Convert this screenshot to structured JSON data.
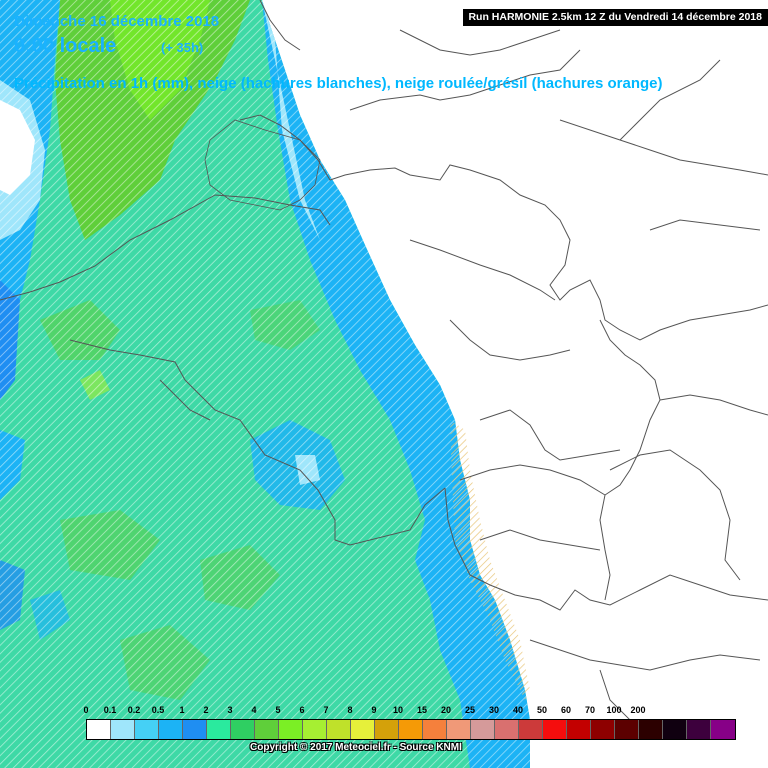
{
  "header": {
    "date_line": "Dimanche 16 décembre 2018",
    "time_main": "0:00 locale",
    "time_offset": "(+ 35h)",
    "precip_title": "Précipitation en 1h (mm), neige (hachures blanches), neige roulée/grésil (hachures orange)",
    "run_info": "Run HARMONIE 2.5km 12 Z du Vendredi 14 décembre 2018"
  },
  "legend": {
    "unit": "mm",
    "items": [
      {
        "label": "0",
        "color": "#ffffff"
      },
      {
        "label": "0.1",
        "color": "#9fe6fb"
      },
      {
        "label": "0.2",
        "color": "#45d0f5"
      },
      {
        "label": "0.5",
        "color": "#1cb3f5"
      },
      {
        "label": "1",
        "color": "#1f8ef2"
      },
      {
        "label": "2",
        "color": "#2aea9e"
      },
      {
        "label": "3",
        "color": "#2fcf62"
      },
      {
        "label": "4",
        "color": "#5fcf3a"
      },
      {
        "label": "5",
        "color": "#7bef25"
      },
      {
        "label": "6",
        "color": "#a6ef32"
      },
      {
        "label": "7",
        "color": "#bfe12a"
      },
      {
        "label": "8",
        "color": "#e6f03a"
      },
      {
        "label": "9",
        "color": "#d4a10a"
      },
      {
        "label": "10",
        "color": "#f59a06"
      },
      {
        "label": "15",
        "color": "#f5803c"
      },
      {
        "label": "20",
        "color": "#f09978"
      },
      {
        "label": "25",
        "color": "#d59a9a"
      },
      {
        "label": "30",
        "color": "#d9706f"
      },
      {
        "label": "40",
        "color": "#cc3a3a"
      },
      {
        "label": "50",
        "color": "#f50d0d"
      },
      {
        "label": "60",
        "color": "#c30000"
      },
      {
        "label": "70",
        "color": "#8e0000"
      },
      {
        "label": "100",
        "color": "#5c0000"
      },
      {
        "label": "200",
        "color": "#2c0000"
      },
      {
        "label": "",
        "color": "#100010"
      },
      {
        "label": "",
        "color": "#3d003d"
      },
      {
        "label": "",
        "color": "#870087"
      }
    ]
  },
  "footer": {
    "copyright": "Copyright © 2017 Meteociel.fr - Source KNMI"
  },
  "map_colors": {
    "sea_light_blue": "#9fe6fb",
    "blue": "#1cb3f5",
    "deep_blue": "#1f8ef2",
    "aqua_green": "#2aea9e",
    "teal_green": "#3ed9a6",
    "green": "#5fcf3a",
    "yellow_green": "#a6ef32",
    "land": "#ffffff",
    "border_line": "#555555",
    "orange_hatch": "#e8c67a"
  }
}
